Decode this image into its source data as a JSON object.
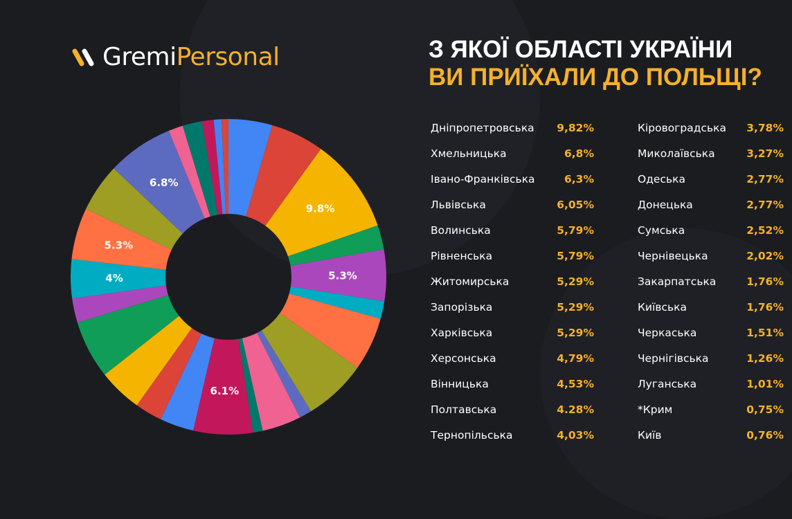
{
  "logo": {
    "part1": "Gremi",
    "part2": "Personal"
  },
  "title": {
    "line1": "З ЯКОЇ ОБЛАСТІ УКРАЇНИ",
    "line2": "ВИ ПРИЇХАЛИ ДО ПОЛЬЩІ?"
  },
  "colors": {
    "background": "#1b1c20",
    "accent": "#f5b12c",
    "text": "#ffffff"
  },
  "list_left": [
    {
      "name": "Дніпропетровська",
      "value": "9,82%"
    },
    {
      "name": "Хмельницька",
      "value": "6,8%"
    },
    {
      "name": "Івано-Франківська",
      "value": "6,3%"
    },
    {
      "name": "Львівська",
      "value": "6,05%"
    },
    {
      "name": "Волинська",
      "value": "5,79%"
    },
    {
      "name": "Рівненська",
      "value": "5,79%"
    },
    {
      "name": "Житомирська",
      "value": "5,29%"
    },
    {
      "name": "Запорізька",
      "value": "5,29%"
    },
    {
      "name": "Харківська",
      "value": "5,29%"
    },
    {
      "name": "Херсонська",
      "value": "4,79%"
    },
    {
      "name": "Вінницька",
      "value": "4,53%"
    },
    {
      "name": "Полтавська",
      "value": "4.28%"
    },
    {
      "name": "Тернопільська",
      "value": "4,03%"
    }
  ],
  "list_right": [
    {
      "name": "Кіровоградська",
      "value": "3,78%"
    },
    {
      "name": "Миколаївська",
      "value": "3,27%"
    },
    {
      "name": "Одеська",
      "value": "2,77%"
    },
    {
      "name": "Донецька",
      "value": "2,77%"
    },
    {
      "name": "Сумська",
      "value": "2,52%"
    },
    {
      "name": "Чернівецька",
      "value": "2,02%"
    },
    {
      "name": "Закарпатська",
      "value": "1,76%"
    },
    {
      "name": "Київська",
      "value": "1,76%"
    },
    {
      "name": "Черкаська",
      "value": "1,51%"
    },
    {
      "name": "Чернігівська",
      "value": "1,26%"
    },
    {
      "name": "Луганська",
      "value": "1,01%"
    },
    {
      "name": "*Крим",
      "value": "0,75%"
    },
    {
      "name": "Київ",
      "value": "0,76%"
    }
  ],
  "chart_data": {
    "type": "pie",
    "donut": true,
    "start": "top, clockwise",
    "slices": [
      {
        "value": 4.5,
        "color": "#4285f4"
      },
      {
        "value": 5.5,
        "color": "#db4437"
      },
      {
        "value": 9.8,
        "color": "#f4b400",
        "label": "9.8%"
      },
      {
        "value": 2.5,
        "color": "#0f9d58"
      },
      {
        "value": 5.3,
        "color": "#ab47bc",
        "label": "5.3%"
      },
      {
        "value": 1.8,
        "color": "#00acc1"
      },
      {
        "value": 5.5,
        "color": "#ff7043"
      },
      {
        "value": 6.5,
        "color": "#9e9d24"
      },
      {
        "value": 1.3,
        "color": "#5c6bc0"
      },
      {
        "value": 4.0,
        "color": "#f06292"
      },
      {
        "value": 1.0,
        "color": "#00796b"
      },
      {
        "value": 6.1,
        "color": "#c2185b",
        "label": "6.1%"
      },
      {
        "value": 3.5,
        "color": "#4285f4"
      },
      {
        "value": 2.8,
        "color": "#db4437"
      },
      {
        "value": 4.5,
        "color": "#f4b400"
      },
      {
        "value": 6.0,
        "color": "#0f9d58"
      },
      {
        "value": 2.5,
        "color": "#ab47bc"
      },
      {
        "value": 4.0,
        "color": "#00acc1",
        "label": "4%"
      },
      {
        "value": 5.3,
        "color": "#ff7043",
        "label": "5.3%"
      },
      {
        "value": 5.0,
        "color": "#9e9d24"
      },
      {
        "value": 6.8,
        "color": "#5c6bc0",
        "label": "6.8%"
      },
      {
        "value": 1.5,
        "color": "#f06292"
      },
      {
        "value": 2.0,
        "color": "#00796b"
      },
      {
        "value": 1.2,
        "color": "#c2185b"
      },
      {
        "value": 0.8,
        "color": "#4285f4"
      },
      {
        "value": 0.7,
        "color": "#db4437"
      }
    ]
  }
}
